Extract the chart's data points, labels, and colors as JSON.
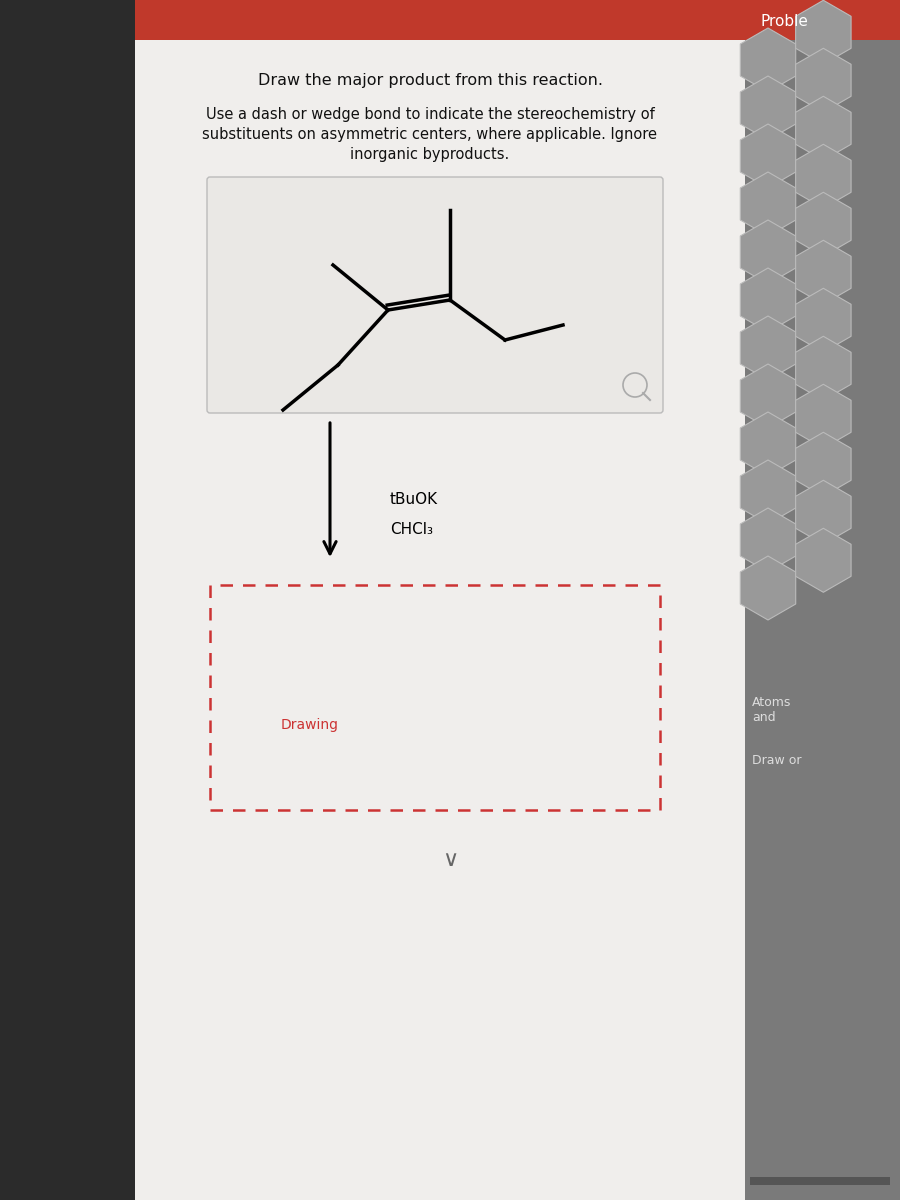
{
  "title_text": "Draw the major product from this reaction.",
  "subtitle_line1": "Use a dash or wedge bond to indicate the stereochemistry of",
  "subtitle_line2": "substituents on asymmetric centers, where applicable. Ignore",
  "subtitle_line3": "inorganic byproducts.",
  "reagent1": "tBuOK",
  "reagent2": "CHCl₃",
  "drawing_label": "Drawing",
  "bg_dark": "#333333",
  "bg_main": "#f0eeec",
  "bg_mol_box": "#e8e6e4",
  "title_fontsize": 11.5,
  "subtitle_fontsize": 10.5,
  "reagent_fontsize": 11,
  "proble_text": "Proble",
  "atoms_text": "Atoms\nand",
  "drawor_text": "Draw or",
  "red_bar": "#c0392b",
  "right_panel_bg": "#888888"
}
